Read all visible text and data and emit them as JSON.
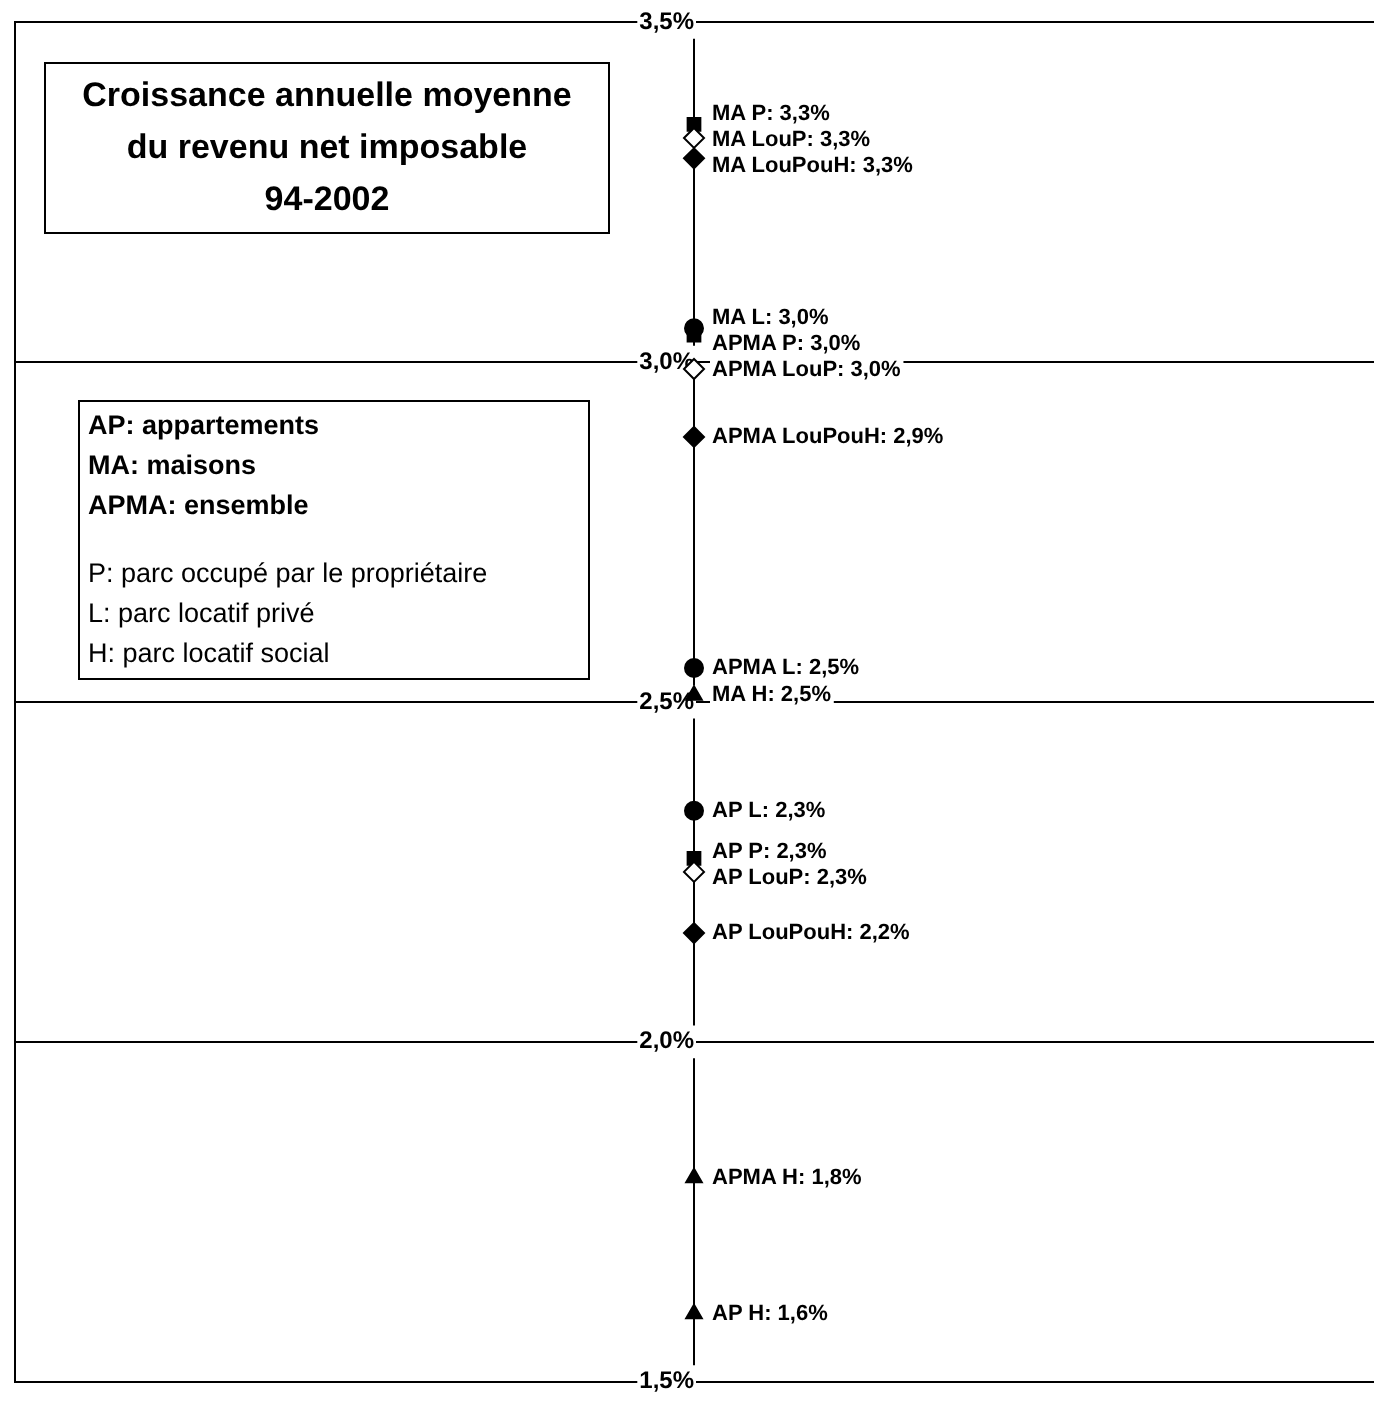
{
  "chart_data": {
    "type": "scatter",
    "title": "Croissance annuelle moyenne\ndu revenu net imposable\n94-2002",
    "annotations": [
      "AP: appartements",
      "MA: maisons",
      "APMA: ensemble",
      "P: parc occupé par le propriétaire",
      "L: parc locatif privé",
      "H: parc locatif social"
    ],
    "categories": [
      null
    ],
    "ylim": [
      1.5,
      3.5
    ],
    "yticks": [
      {
        "value": 1.5,
        "label": "1,5%"
      },
      {
        "value": 2.0,
        "label": "2,0%"
      },
      {
        "value": 2.5,
        "label": "2,5%"
      },
      {
        "value": 3.0,
        "label": "3,0%"
      },
      {
        "value": 3.5,
        "label": "3,5%"
      }
    ],
    "grid": "y",
    "tick_labels": "y",
    "legend": false,
    "series": [
      {
        "name": "MA P: 3,3%",
        "values": [
          3.35
        ],
        "color": "#000000",
        "marker": "square"
      },
      {
        "name": "MA LouP: 3,3%",
        "values": [
          3.33
        ],
        "color": "#ffffff",
        "marker": "diamond"
      },
      {
        "name": "MA LouPouH: 3,3%",
        "values": [
          3.3
        ],
        "color": "#000000",
        "marker": "diamond"
      },
      {
        "name": "MA L: 3,0%",
        "values": [
          3.05
        ],
        "color": "#000000",
        "marker": "circle"
      },
      {
        "name": "APMA P: 3,0%",
        "values": [
          3.04
        ],
        "color": "#000000",
        "marker": "square"
      },
      {
        "name": "APMA LouP: 3,0%",
        "values": [
          2.99
        ],
        "color": "#ffffff",
        "marker": "diamond"
      },
      {
        "name": "APMA LouPouH: 2,9%",
        "values": [
          2.89
        ],
        "color": "#000000",
        "marker": "diamond"
      },
      {
        "name": "APMA L: 2,5%",
        "values": [
          2.55
        ],
        "color": "#000000",
        "marker": "circle"
      },
      {
        "name": "MA H: 2,5%",
        "values": [
          2.51
        ],
        "color": "#000000",
        "marker": "triangle"
      },
      {
        "name": "AP L: 2,3%",
        "values": [
          2.34
        ],
        "color": "#000000",
        "marker": "circle"
      },
      {
        "name": "AP P: 2,3%",
        "values": [
          2.27
        ],
        "color": "#000000",
        "marker": "square"
      },
      {
        "name": "AP LouP: 2,3%",
        "values": [
          2.25
        ],
        "color": "#ffffff",
        "marker": "diamond"
      },
      {
        "name": "AP LouPouH: 2,2%",
        "values": [
          2.16
        ],
        "color": "#000000",
        "marker": "diamond"
      },
      {
        "name": "APMA H: 1,8%",
        "values": [
          1.8
        ],
        "color": "#000000",
        "marker": "triangle"
      },
      {
        "name": "AP H: 1,6%",
        "values": [
          1.6
        ],
        "color": "#000000",
        "marker": "triangle"
      }
    ]
  }
}
